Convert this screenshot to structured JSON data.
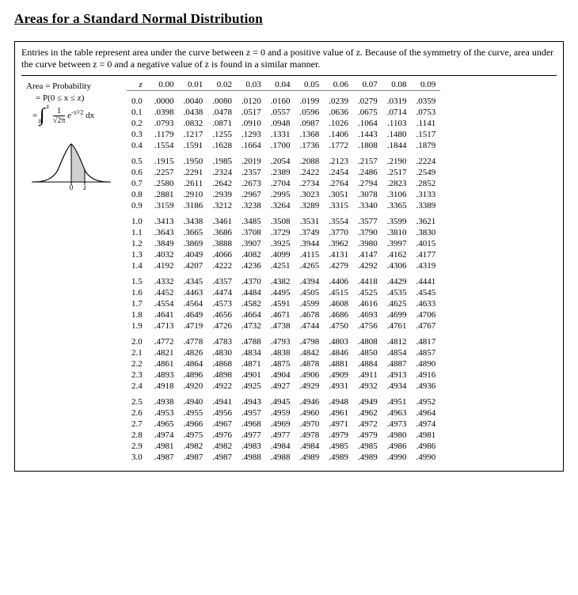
{
  "title": "Areas for a Standard Normal Distribution",
  "intro": "Entries in the table represent area under the curve between z = 0 and a positive value of z. Because of the symmetry of the curve, area under the curve between z = 0 and a negative value of z is found in a similar manner.",
  "left": {
    "area_label": "Area = Probability",
    "formula_lhs": "= P(0 ≤ x ≤ z)",
    "integral_dx": "dx",
    "bell_zero": "0",
    "bell_z": "z"
  },
  "columns": [
    "z",
    "0.00",
    "0.01",
    "0.02",
    "0.03",
    "0.04",
    "0.05",
    "0.06",
    "0.07",
    "0.08",
    "0.09"
  ],
  "groups": [
    [
      [
        "0.0",
        ".0000",
        ".0040",
        ".0080",
        ".0120",
        ".0160",
        ".0199",
        ".0239",
        ".0279",
        ".0319",
        ".0359"
      ],
      [
        "0.1",
        ".0398",
        ".0438",
        ".0478",
        ".0517",
        ".0557",
        ".0596",
        ".0636",
        ".0675",
        ".0714",
        ".0753"
      ],
      [
        "0.2",
        ".0793",
        ".0832",
        ".0871",
        ".0910",
        ".0948",
        ".0987",
        ".1026",
        ".1064",
        ".1103",
        ".1141"
      ],
      [
        "0.3",
        ".1179",
        ".1217",
        ".1255",
        ".1293",
        ".1331",
        ".1368",
        ".1406",
        ".1443",
        ".1480",
        ".1517"
      ],
      [
        "0.4",
        ".1554",
        ".1591",
        ".1628",
        ".1664",
        ".1700",
        ".1736",
        ".1772",
        ".1808",
        ".1844",
        ".1879"
      ]
    ],
    [
      [
        "0.5",
        ".1915",
        ".1950",
        ".1985",
        ".2019",
        ".2054",
        ".2088",
        ".2123",
        ".2157",
        ".2190",
        ".2224"
      ],
      [
        "0.6",
        ".2257",
        ".2291",
        ".2324",
        ".2357",
        ".2389",
        ".2422",
        ".2454",
        ".2486",
        ".2517",
        ".2549"
      ],
      [
        "0.7",
        ".2580",
        ".2611",
        ".2642",
        ".2673",
        ".2704",
        ".2734",
        ".2764",
        ".2794",
        ".2823",
        ".2852"
      ],
      [
        "0.8",
        ".2881",
        ".2910",
        ".2939",
        ".2967",
        ".2995",
        ".3023",
        ".3051",
        ".3078",
        ".3106",
        ".3133"
      ],
      [
        "0.9",
        ".3159",
        ".3186",
        ".3212",
        ".3238",
        ".3264",
        ".3289",
        ".3315",
        ".3340",
        ".3365",
        ".3389"
      ]
    ],
    [
      [
        "1.0",
        ".3413",
        ".3438",
        ".3461",
        ".3485",
        ".3508",
        ".3531",
        ".3554",
        ".3577",
        ".3599",
        ".3621"
      ],
      [
        "1.1",
        ".3643",
        ".3665",
        ".3686",
        ".3708",
        ".3729",
        ".3749",
        ".3770",
        ".3790",
        ".3810",
        ".3830"
      ],
      [
        "1.2",
        ".3849",
        ".3869",
        ".3888",
        ".3907",
        ".3925",
        ".3944",
        ".3962",
        ".3980",
        ".3997",
        ".4015"
      ],
      [
        "1.3",
        ".4032",
        ".4049",
        ".4066",
        ".4082",
        ".4099",
        ".4115",
        ".4131",
        ".4147",
        ".4162",
        ".4177"
      ],
      [
        "1.4",
        ".4192",
        ".4207",
        ".4222",
        ".4236",
        ".4251",
        ".4265",
        ".4279",
        ".4292",
        ".4306",
        ".4319"
      ]
    ],
    [
      [
        "1.5",
        ".4332",
        ".4345",
        ".4357",
        ".4370",
        ".4382",
        ".4394",
        ".4406",
        ".4418",
        ".4429",
        ".4441"
      ],
      [
        "1.6",
        ".4452",
        ".4463",
        ".4474",
        ".4484",
        ".4495",
        ".4505",
        ".4515",
        ".4525",
        ".4535",
        ".4545"
      ],
      [
        "1.7",
        ".4554",
        ".4564",
        ".4573",
        ".4582",
        ".4591",
        ".4599",
        ".4608",
        ".4616",
        ".4625",
        ".4633"
      ],
      [
        "1.8",
        ".4641",
        ".4649",
        ".4656",
        ".4664",
        ".4671",
        ".4678",
        ".4686",
        ".4693",
        ".4699",
        ".4706"
      ],
      [
        "1.9",
        ".4713",
        ".4719",
        ".4726",
        ".4732",
        ".4738",
        ".4744",
        ".4750",
        ".4756",
        ".4761",
        ".4767"
      ]
    ],
    [
      [
        "2.0",
        ".4772",
        ".4778",
        ".4783",
        ".4788",
        ".4793",
        ".4798",
        ".4803",
        ".4808",
        ".4812",
        ".4817"
      ],
      [
        "2.1",
        ".4821",
        ".4826",
        ".4830",
        ".4834",
        ".4838",
        ".4842",
        ".4846",
        ".4850",
        ".4854",
        ".4857"
      ],
      [
        "2.2",
        ".4861",
        ".4864",
        ".4868",
        ".4871",
        ".4875",
        ".4878",
        ".4881",
        ".4884",
        ".4887",
        ".4890"
      ],
      [
        "2.3",
        ".4893",
        ".4896",
        ".4898",
        ".4901",
        ".4904",
        ".4906",
        ".4909",
        ".4911",
        ".4913",
        ".4916"
      ],
      [
        "2.4",
        ".4918",
        ".4920",
        ".4922",
        ".4925",
        ".4927",
        ".4929",
        ".4931",
        ".4932",
        ".4934",
        ".4936"
      ]
    ],
    [
      [
        "2.5",
        ".4938",
        ".4940",
        ".4941",
        ".4943",
        ".4945",
        ".4946",
        ".4948",
        ".4949",
        ".4951",
        ".4952"
      ],
      [
        "2.6",
        ".4953",
        ".4955",
        ".4956",
        ".4957",
        ".4959",
        ".4960",
        ".4961",
        ".4962",
        ".4963",
        ".4964"
      ],
      [
        "2.7",
        ".4965",
        ".4966",
        ".4967",
        ".4968",
        ".4969",
        ".4970",
        ".4971",
        ".4972",
        ".4973",
        ".4974"
      ],
      [
        "2.8",
        ".4974",
        ".4975",
        ".4976",
        ".4977",
        ".4977",
        ".4978",
        ".4979",
        ".4979",
        ".4980",
        ".4981"
      ],
      [
        "2.9",
        ".4981",
        ".4982",
        ".4982",
        ".4983",
        ".4984",
        ".4984",
        ".4985",
        ".4985",
        ".4986",
        ".4986"
      ],
      [
        "3.0",
        ".4987",
        ".4987",
        ".4987",
        ".4988",
        ".4988",
        ".4989",
        ".4989",
        ".4989",
        ".4990",
        ".4990"
      ]
    ]
  ]
}
